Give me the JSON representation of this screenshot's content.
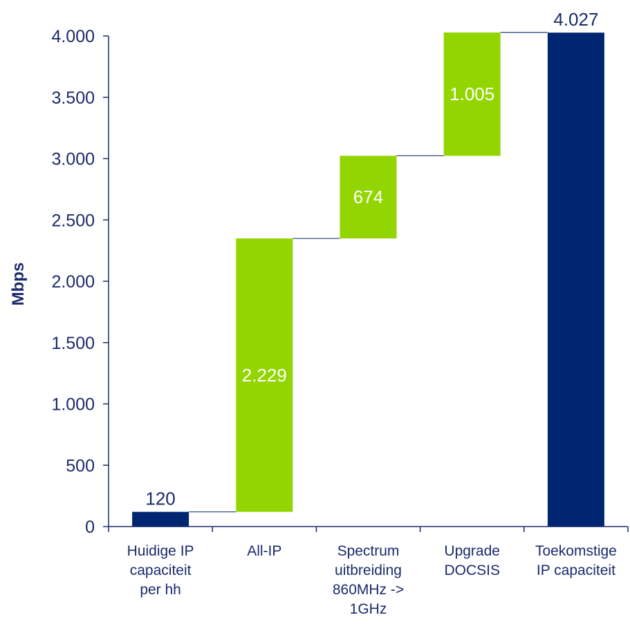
{
  "chart_data": {
    "type": "bar",
    "subtype": "waterfall",
    "title": "",
    "xlabel": "",
    "ylabel": "Mbps",
    "ylim": [
      0,
      4000
    ],
    "yticks": [
      0,
      500,
      1000,
      1500,
      2000,
      2500,
      3000,
      3500,
      4000
    ],
    "ytick_labels": [
      "0",
      "500",
      "1.000",
      "1.500",
      "2.000",
      "2.500",
      "3.000",
      "3.500",
      "4.000"
    ],
    "grid": false,
    "legend": "none",
    "categories": [
      [
        "Huidige IP",
        "capaciteit",
        "per hh"
      ],
      [
        "All-IP"
      ],
      [
        "Spectrum",
        "uitbreiding",
        "860MHz ->",
        "1GHz"
      ],
      [
        "Upgrade",
        "DOCSIS"
      ],
      [
        "Toekomstige",
        "IP capaciteit"
      ]
    ],
    "bars": [
      {
        "kind": "total",
        "base": 0,
        "value": 120,
        "label": "120"
      },
      {
        "kind": "increment",
        "base": 120,
        "value": 2229,
        "label": "2.229"
      },
      {
        "kind": "increment",
        "base": 2349,
        "value": 674,
        "label": "674"
      },
      {
        "kind": "increment",
        "base": 3023,
        "value": 1005,
        "label": "1.005"
      },
      {
        "kind": "total",
        "base": 0,
        "value": 4027,
        "label": "4.027"
      }
    ],
    "colors": {
      "total": "#002672",
      "increment": "#93d500",
      "text": "#1b2a6b",
      "connector": "#1f3f7a"
    }
  }
}
